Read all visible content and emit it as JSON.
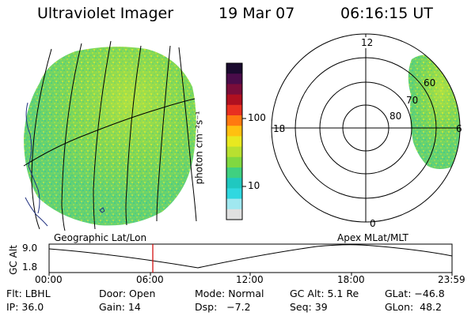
{
  "header": {
    "instrument": "Ultraviolet Imager",
    "date": "19 Mar 07",
    "time": "06:16:15 UT"
  },
  "colorbar": {
    "unit_label": "photon cm⁻²s⁻¹",
    "ticks": [
      "100",
      "10"
    ],
    "colors": [
      "#1a0a2e",
      "#4a0c4a",
      "#7a0d3a",
      "#b01020",
      "#e83020",
      "#ff7a10",
      "#ffc010",
      "#e8e820",
      "#b8e030",
      "#80d840",
      "#40d080",
      "#20c8c0",
      "#30d8e0",
      "#a0e8f0",
      "#e0e0e0"
    ]
  },
  "polar_plot": {
    "labels": {
      "top": "12",
      "left": "18",
      "right": "6",
      "bottom": "0",
      "lat80": "80",
      "lat70": "70",
      "lat60": "60"
    }
  },
  "timeline": {
    "y_label": "GC Alt",
    "y_max": "9.0",
    "y_min": "1.8",
    "left_title": "Geographic Lat/Lon",
    "right_title": "Apex MLat/MLT",
    "ticks": [
      "00:00",
      "06:00",
      "12:00",
      "18:00",
      "23:59"
    ],
    "current_time_marker": "06:16"
  },
  "footer": {
    "row1": [
      "Flt: LBHL",
      "Door: Open",
      "Mode: Normal",
      "GC Alt: 5.1 Re",
      "GLat: −46.8"
    ],
    "row2": [
      "IP: 36.0",
      "Gain: 14",
      "Dsp:   −7.2",
      "Seq: 39",
      "GLon:  48.2"
    ]
  }
}
